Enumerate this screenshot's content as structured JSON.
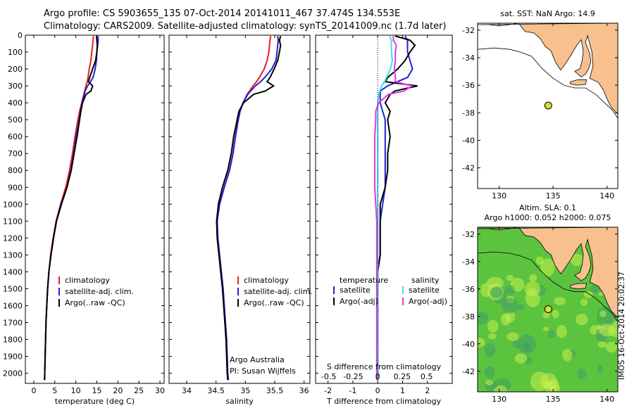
{
  "header": {
    "line1": "Argo profile: CS 5903655_135 07-Oct-2014 20141011_467 37.474S 134.553E",
    "line2": "Climatology: CARS2009. Satellite-adjusted climatology: synTS_20141009.nc (1.7d later)"
  },
  "stamp": "IMOS 16-Oct-2014 20:02:37",
  "colors": {
    "climatology": "#e81f1f",
    "satellite": "#1f1fd8",
    "argo": "#000000",
    "sat_s": "#33e6e6",
    "argo_s": "#e633e6",
    "land": "#f7c08e",
    "sla_bg": "#5cc33f",
    "sla_hi": "#c9f04a",
    "sla_lo": "#3f9f66",
    "float_marker": "#d9e02a"
  },
  "chart_data": [
    {
      "type": "line",
      "id": "temperature",
      "xlabel": "temperature (deg C)",
      "xlim": [
        -2,
        31
      ],
      "ylim": [
        2060,
        0
      ],
      "xticks": [
        0,
        5,
        10,
        15,
        20,
        25,
        30
      ],
      "yticks": [
        0,
        100,
        200,
        300,
        400,
        500,
        600,
        700,
        800,
        900,
        1000,
        1100,
        1200,
        1300,
        1400,
        1500,
        1600,
        1700,
        1800,
        1900,
        2000
      ],
      "depth": [
        5,
        30,
        60,
        100,
        150,
        200,
        250,
        275,
        300,
        330,
        350,
        400,
        450,
        500,
        600,
        700,
        800,
        900,
        1000,
        1100,
        1200,
        1300,
        1400,
        1500,
        1600,
        1700,
        1800,
        1900,
        2000,
        2040
      ],
      "series": [
        {
          "name": "climatology",
          "color_key": "climatology",
          "values": [
            14.2,
            14.1,
            14.0,
            13.8,
            13.6,
            13.2,
            12.9,
            12.7,
            12.4,
            12.1,
            11.9,
            11.4,
            10.9,
            10.5,
            9.8,
            9.2,
            8.5,
            7.6,
            6.4,
            5.3,
            4.6,
            4.0,
            3.6,
            3.3,
            3.1,
            2.9,
            2.8,
            2.7,
            2.6,
            2.55
          ]
        },
        {
          "name": "satellite-adj. clim.",
          "color_key": "satellite",
          "values": [
            15.3,
            15.3,
            15.2,
            15.0,
            14.9,
            14.6,
            14.1,
            13.5,
            12.8,
            12.2,
            12.0,
            11.5,
            11.1,
            10.8,
            10.1,
            9.5,
            8.8,
            7.9,
            6.6,
            5.4,
            4.7,
            4.1,
            3.6,
            3.3,
            3.1,
            2.9,
            2.8,
            2.7,
            2.6,
            2.55
          ]
        },
        {
          "name": "Argo(..raw -QC)",
          "color_key": "argo",
          "values": [
            14.9,
            15.0,
            15.1,
            15.0,
            14.7,
            14.0,
            13.3,
            13.0,
            14.0,
            13.6,
            12.4,
            11.6,
            11.2,
            10.9,
            10.3,
            9.6,
            8.9,
            7.9,
            6.5,
            5.4,
            4.7,
            4.1,
            3.6,
            3.3,
            3.1,
            2.9,
            2.8,
            2.7,
            2.6,
            2.55
          ]
        }
      ],
      "legend": {
        "placement": "lower-middle",
        "entries": [
          "climatology",
          "satellite-adj. clim.",
          "Argo(..raw -QC)"
        ]
      }
    },
    {
      "type": "line",
      "id": "salinity",
      "xlabel": "salinity",
      "xlim": [
        33.7,
        36.1
      ],
      "ylim": [
        2060,
        0
      ],
      "xticks": [
        34,
        34.5,
        35,
        35.5,
        36
      ],
      "depth": [
        5,
        30,
        60,
        100,
        150,
        200,
        250,
        275,
        300,
        330,
        350,
        400,
        450,
        500,
        600,
        700,
        800,
        900,
        1000,
        1100,
        1200,
        1300,
        1400,
        1500,
        1600,
        1700,
        1800,
        1900,
        2000,
        2040
      ],
      "series": [
        {
          "name": "climatology",
          "color_key": "climatology",
          "values": [
            35.43,
            35.42,
            35.41,
            35.4,
            35.37,
            35.32,
            35.24,
            35.19,
            35.13,
            35.07,
            35.03,
            34.96,
            34.91,
            34.88,
            34.83,
            34.79,
            34.73,
            34.64,
            34.56,
            34.52,
            34.53,
            34.56,
            34.59,
            34.62,
            34.64,
            34.66,
            34.68,
            34.69,
            34.7,
            34.71
          ]
        },
        {
          "name": "satellite-adj. clim.",
          "color_key": "satellite",
          "values": [
            35.55,
            35.56,
            35.55,
            35.54,
            35.52,
            35.45,
            35.33,
            35.26,
            35.17,
            35.09,
            35.04,
            34.96,
            34.91,
            34.88,
            34.83,
            34.79,
            34.73,
            34.64,
            34.56,
            34.52,
            34.53,
            34.56,
            34.59,
            34.62,
            34.64,
            34.66,
            34.68,
            34.69,
            34.7,
            34.71
          ]
        },
        {
          "name": "Argo(..raw -QC)",
          "color_key": "argo",
          "values": [
            35.6,
            35.58,
            35.6,
            35.58,
            35.55,
            35.49,
            35.42,
            35.37,
            35.48,
            35.34,
            35.14,
            34.97,
            34.89,
            34.86,
            34.8,
            34.76,
            34.7,
            34.61,
            34.54,
            34.51,
            34.52,
            34.55,
            34.58,
            34.61,
            34.63,
            34.65,
            34.67,
            34.68,
            34.69,
            34.7
          ]
        }
      ],
      "legend": {
        "placement": "lower-middle",
        "entries": [
          "climatology",
          "satellite-adj. clim.",
          "Argo(..raw -QC)"
        ]
      },
      "annotation": [
        "Argo Australia",
        "PI: Susan Wijffels"
      ]
    },
    {
      "type": "line",
      "id": "difference",
      "xlabel": "T difference from climatology",
      "x2label": "S difference from climatology",
      "xlim": [
        -2.5,
        3.0
      ],
      "ylim": [
        2060,
        0
      ],
      "xticks": [
        -2,
        -1,
        0,
        1,
        2
      ],
      "x2ticks": [
        -0.5,
        -0.25,
        0,
        0.25,
        0.5
      ],
      "depth": [
        5,
        30,
        60,
        100,
        150,
        200,
        250,
        275,
        300,
        330,
        350,
        400,
        450,
        500,
        600,
        700,
        800,
        900,
        1000,
        1100,
        1200,
        1300,
        1400,
        1500,
        1600,
        1700,
        1800,
        1900,
        2000,
        2040
      ],
      "series": [
        {
          "name": "satellite",
          "group": "temperature",
          "color_key": "satellite",
          "values": [
            1.1,
            1.2,
            1.2,
            1.2,
            1.3,
            1.4,
            1.2,
            0.8,
            0.4,
            0.1,
            0.1,
            0.1,
            0.2,
            0.3,
            0.3,
            0.3,
            0.3,
            0.3,
            0.2,
            0.1,
            0.1,
            0.1,
            0.0,
            0.0,
            0.0,
            0.0,
            0.0,
            0.0,
            0.0,
            0.0
          ]
        },
        {
          "name": "Argo(-adj)",
          "group": "temperature",
          "color_key": "argo",
          "values": [
            0.7,
            1.3,
            1.5,
            1.3,
            1.1,
            0.8,
            0.4,
            0.3,
            1.6,
            0.7,
            0.5,
            0.3,
            0.5,
            0.4,
            0.5,
            0.4,
            0.4,
            0.3,
            0.1,
            0.1,
            0.1,
            0.1,
            0.0,
            0.0,
            0.0,
            0.0,
            0.0,
            0.0,
            0.0,
            0.0
          ]
        },
        {
          "name": "satellite",
          "group": "salinity",
          "color_key": "sat_s",
          "values": [
            0.12,
            0.14,
            0.14,
            0.14,
            0.15,
            0.13,
            0.09,
            0.07,
            0.04,
            0.02,
            0.01,
            0.0,
            0.0,
            0.0,
            0.0,
            0.0,
            0.0,
            0.0,
            0.0,
            0.0,
            0.0,
            0.0,
            0.0,
            0.0,
            0.0,
            0.0,
            0.0,
            0.0,
            0.0,
            0.0
          ]
        },
        {
          "name": "Argo(-adj)",
          "group": "salinity",
          "color_key": "argo_s",
          "values": [
            0.16,
            0.16,
            0.19,
            0.18,
            0.18,
            0.17,
            0.18,
            0.18,
            0.35,
            0.27,
            0.11,
            0.01,
            -0.02,
            -0.02,
            -0.03,
            -0.03,
            -0.03,
            -0.03,
            -0.02,
            -0.01,
            -0.01,
            -0.01,
            -0.01,
            -0.01,
            -0.01,
            -0.01,
            -0.01,
            -0.01,
            -0.01,
            -0.01
          ]
        }
      ],
      "legend": {
        "placement": "lower-middle",
        "groups": [
          "temperature",
          "salinity"
        ],
        "entries": [
          "satellite",
          "Argo(-adj)",
          "satellite",
          "Argo(-adj)"
        ]
      }
    },
    {
      "type": "scatter",
      "id": "sst_map",
      "title": "sat. SST: NaN Argo: 14.9",
      "xlim": [
        128,
        141
      ],
      "ylim": [
        -43.5,
        -31.5
      ],
      "xticks": [
        130,
        135,
        140
      ],
      "yticks": [
        -32,
        -34,
        -36,
        -38,
        -40,
        -42
      ],
      "float": {
        "lon": 134.553,
        "lat": -37.474
      }
    },
    {
      "type": "heatmap",
      "id": "sla_map",
      "title": "Altim. SLA: 0.1",
      "subtitle": "Argo h1000: 0.052 h2000: 0.075",
      "xlim": [
        128,
        141
      ],
      "ylim": [
        -43.5,
        -31.5
      ],
      "xticks": [
        130,
        135,
        140
      ],
      "yticks": [
        -32,
        -34,
        -36,
        -38,
        -40,
        -42
      ],
      "float": {
        "lon": 134.553,
        "lat": -37.474
      }
    }
  ]
}
